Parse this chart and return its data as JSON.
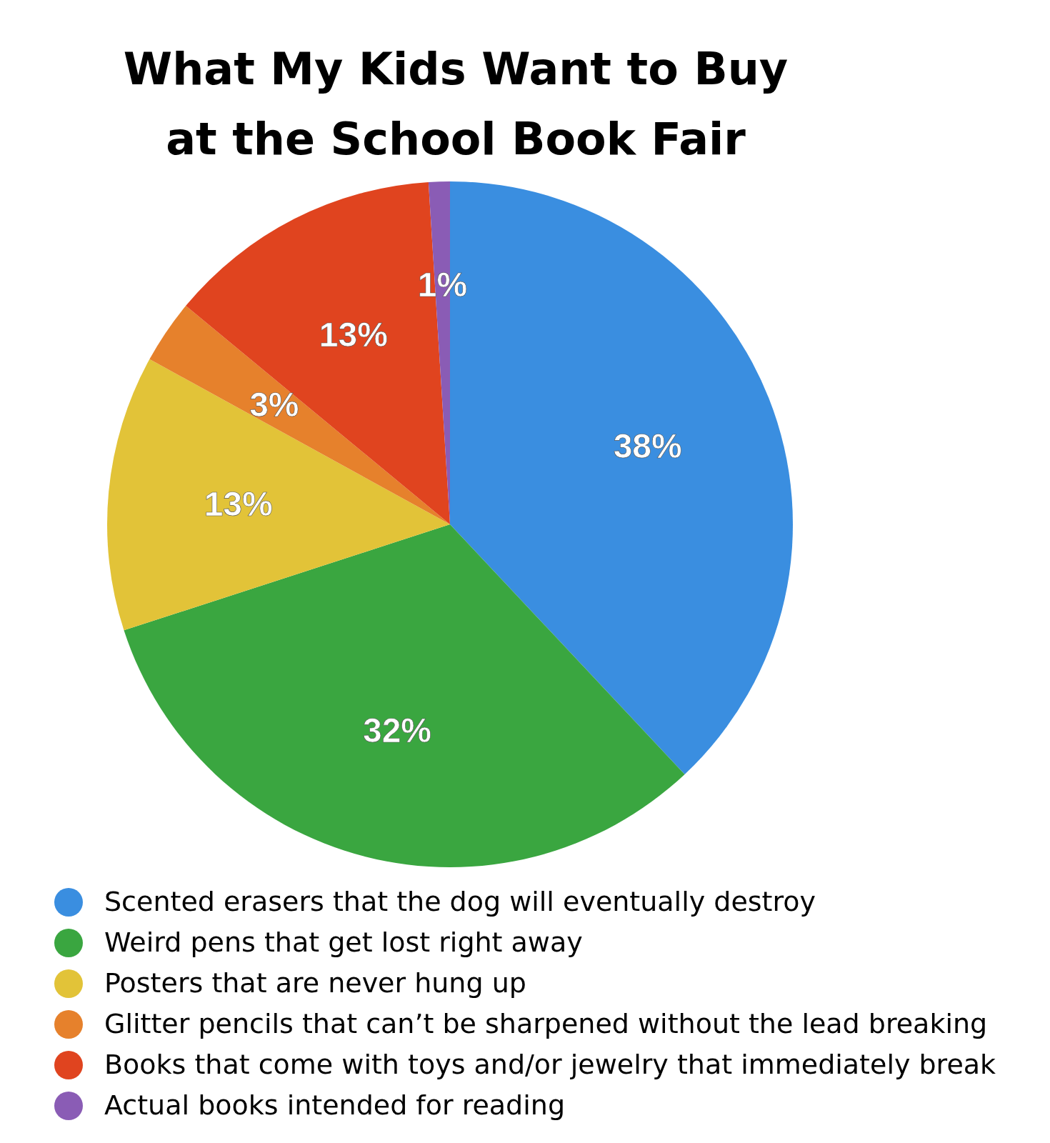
{
  "chart_data": {
    "type": "pie",
    "title": "What My Kids Want to Buy\nat the School Book Fair",
    "categories": [
      "Scented erasers that the dog will eventually destroy",
      "Weird pens that get lost right away",
      "Posters that are never hung up",
      "Glitter pencils that can’t be sharpened without the lead breaking",
      "Books that come with toys and/or jewelry that immediately break",
      "Actual books intended for reading"
    ],
    "values": [
      38,
      32,
      13,
      3,
      13,
      1
    ],
    "colors": [
      "#3a8ee0",
      "#3aa640",
      "#e2c338",
      "#e6812c",
      "#e0441f",
      "#8a5cb5"
    ],
    "value_labels": [
      "38%",
      "32%",
      "13%",
      "3%",
      "13%",
      "1%"
    ],
    "legend": "bottom"
  }
}
